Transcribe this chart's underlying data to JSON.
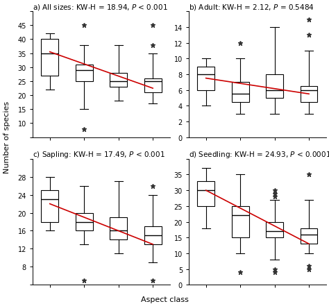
{
  "subplots": [
    {
      "label": "a) All sizes: KW-H = 18.94, ",
      "label_p": "P",
      "label_rest": " < 0.001",
      "ylim": [
        5,
        50
      ],
      "yticks": [
        5,
        10,
        15,
        20,
        25,
        30,
        35,
        40,
        45,
        50
      ],
      "yticklabels": [
        "",
        "10",
        "15",
        "20",
        "25",
        "30",
        "35",
        "40",
        "45",
        ""
      ],
      "boxes": [
        {
          "med": 35,
          "q1": 27,
          "q3": 40,
          "whislo": 22,
          "whishi": 42,
          "fliers": []
        },
        {
          "med": 29,
          "q1": 25,
          "q3": 31,
          "whislo": 15,
          "whishi": 38,
          "fliers": [
            8,
            45
          ]
        },
        {
          "med": 25,
          "q1": 23,
          "q3": 28,
          "whislo": 18,
          "whishi": 38,
          "fliers": []
        },
        {
          "med": 25,
          "q1": 21,
          "q3": 26,
          "whislo": 17,
          "whishi": 35,
          "fliers": [
            38,
            45
          ]
        }
      ],
      "trend_x": [
        1,
        4
      ],
      "trend_y": [
        35.5,
        22.5
      ]
    },
    {
      "label": "b) Adult: KW-H = 2.12, ",
      "label_p": "P",
      "label_rest": " = 0.5484",
      "ylim": [
        0,
        16
      ],
      "yticks": [
        0,
        2,
        4,
        6,
        8,
        10,
        12,
        14,
        16
      ],
      "yticklabels": [
        "0",
        "2",
        "4",
        "6",
        "8",
        "10",
        "12",
        "14",
        ""
      ],
      "boxes": [
        {
          "med": 8,
          "q1": 6,
          "q3": 9,
          "whislo": 4,
          "whishi": 10,
          "fliers": []
        },
        {
          "med": 5.5,
          "q1": 4.5,
          "q3": 7,
          "whislo": 3,
          "whishi": 10,
          "fliers": [
            12
          ]
        },
        {
          "med": 6,
          "q1": 5,
          "q3": 8,
          "whislo": 3,
          "whishi": 14,
          "fliers": []
        },
        {
          "med": 6,
          "q1": 4.5,
          "q3": 6.5,
          "whislo": 3,
          "whishi": 11,
          "fliers": [
            13,
            15
          ]
        }
      ],
      "trend_x": [
        1,
        4
      ],
      "trend_y": [
        7.5,
        5.5
      ]
    },
    {
      "label": "c) Sapling: KW-H = 17.49, ",
      "label_p": "P",
      "label_rest": " < 0.001",
      "ylim": [
        4,
        32
      ],
      "yticks": [
        4,
        8,
        12,
        16,
        20,
        24,
        28,
        32
      ],
      "yticklabels": [
        "",
        "8",
        "12",
        "16",
        "20",
        "24",
        "28",
        ""
      ],
      "boxes": [
        {
          "med": 23,
          "q1": 18,
          "q3": 25,
          "whislo": 16,
          "whishi": 28,
          "fliers": []
        },
        {
          "med": 18,
          "q1": 16,
          "q3": 20,
          "whislo": 13,
          "whishi": 26,
          "fliers": [
            5
          ]
        },
        {
          "med": 16,
          "q1": 14,
          "q3": 19,
          "whislo": 11,
          "whishi": 27,
          "fliers": []
        },
        {
          "med": 15,
          "q1": 13,
          "q3": 17,
          "whislo": 9,
          "whishi": 24,
          "fliers": [
            5,
            26
          ]
        }
      ],
      "trend_x": [
        1,
        4
      ],
      "trend_y": [
        22,
        13
      ]
    },
    {
      "label": "d) Seedling: KW-H = 24.93, ",
      "label_p": "P",
      "label_rest": " < 0.0001",
      "ylim": [
        0,
        40
      ],
      "yticks": [
        0,
        5,
        10,
        15,
        20,
        25,
        30,
        35,
        40
      ],
      "yticklabels": [
        "0",
        "5",
        "10",
        "15",
        "20",
        "25",
        "30",
        "35",
        ""
      ],
      "boxes": [
        {
          "med": 30,
          "q1": 25,
          "q3": 33,
          "whislo": 18,
          "whishi": 37,
          "fliers": []
        },
        {
          "med": 22,
          "q1": 15,
          "q3": 25,
          "whislo": 10,
          "whishi": 35,
          "fliers": [
            4
          ]
        },
        {
          "med": 17,
          "q1": 15,
          "q3": 20,
          "whislo": 8,
          "whishi": 27,
          "fliers": [
            4,
            5,
            28,
            29,
            30
          ]
        },
        {
          "med": 16,
          "q1": 13,
          "q3": 18,
          "whislo": 10,
          "whishi": 27,
          "fliers": [
            5,
            6,
            35
          ]
        }
      ],
      "trend_x": [
        1,
        4
      ],
      "trend_y": [
        30,
        13
      ]
    }
  ],
  "box_color": "#ffffff",
  "box_edge_color": "#000000",
  "median_color": "#000000",
  "whisker_color": "#000000",
  "flier_marker": "*",
  "flier_color": "#333333",
  "trend_color": "#cc0000",
  "ylabel": "Number of species",
  "xlabel": "Aspect class",
  "xticks": [
    1,
    2,
    3,
    4
  ],
  "box_width": 0.5,
  "title_fontsize": 7.5,
  "tick_fontsize": 7,
  "label_fontsize": 8
}
